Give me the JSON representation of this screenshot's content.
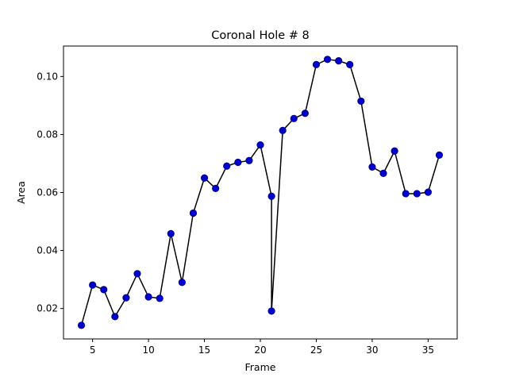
{
  "chart_data": {
    "type": "line",
    "title": "Coronal Hole # 8",
    "xlabel": "Frame",
    "ylabel": "Area",
    "xlim": [
      2.4,
      37.6
    ],
    "ylim": [
      0.0095,
      0.1105
    ],
    "xticks": [
      5,
      10,
      15,
      20,
      25,
      30,
      35
    ],
    "xtick_labels": [
      "5",
      "10",
      "15",
      "20",
      "25",
      "30",
      "35"
    ],
    "yticks": [
      0.02,
      0.04,
      0.06,
      0.08,
      0.1
    ],
    "ytick_labels": [
      "0.02",
      "0.04",
      "0.06",
      "0.08",
      "0.10"
    ],
    "grid": false,
    "line_color": "#000000",
    "marker_color": "#0000cc",
    "marker_edge_color": "#000080",
    "series": [
      {
        "x": [
          4,
          5,
          6,
          7,
          8,
          9,
          10,
          11,
          12,
          13,
          14,
          15,
          16,
          17,
          18,
          19,
          20,
          21,
          21,
          22,
          23,
          24,
          25,
          26,
          27,
          28,
          29,
          30,
          31,
          32,
          33,
          34,
          35,
          36
        ],
        "y": [
          0.0142,
          0.0281,
          0.0265,
          0.0172,
          0.0237,
          0.032,
          0.024,
          0.0235,
          0.0458,
          0.029,
          0.0529,
          0.065,
          0.0614,
          0.0691,
          0.0704,
          0.071,
          0.0764,
          0.0587,
          0.0191,
          0.0814,
          0.0855,
          0.0873,
          0.1041,
          0.1059,
          0.1054,
          0.1041,
          0.0915,
          0.0688,
          0.0666,
          0.0743,
          0.0596,
          0.0596,
          0.0601,
          0.0729
        ]
      }
    ]
  }
}
